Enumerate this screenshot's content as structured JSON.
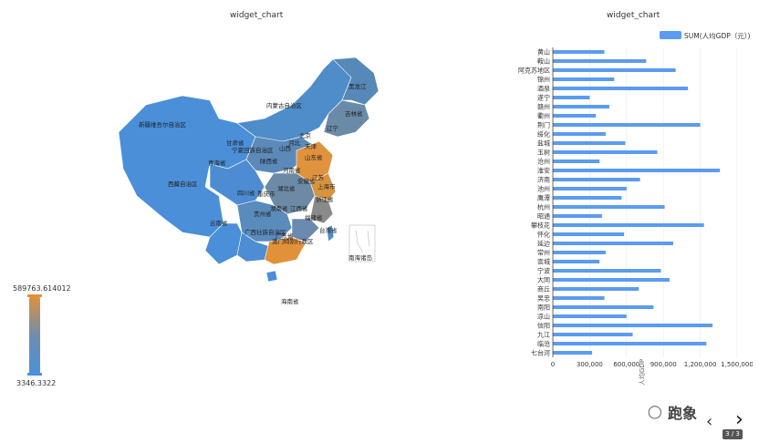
{
  "left_chart": {
    "title": "widget_chart",
    "visual_map": {
      "max": "589763.614012",
      "min": "3346.3322",
      "colors": [
        "#e0913a",
        "#6f8dae",
        "#4a90d9"
      ]
    },
    "labels": [
      "黑龙江",
      "内蒙古自治区",
      "新疆维吾尔自治区",
      "吉林省",
      "辽宁",
      "北京",
      "河北",
      "天津",
      "山西",
      "宁夏回族自治区",
      "山东省",
      "甘肃省",
      "陕西省",
      "青海省",
      "河南省",
      "江苏",
      "西藏自治区",
      "湖北省",
      "安徽省",
      "上海市",
      "四川省",
      "重庆市",
      "浙江省",
      "湖南省",
      "江西省",
      "贵州省",
      "福建省",
      "云南省",
      "广西壮族自治区",
      "广东省",
      "澳门特别行政区",
      "台湾省",
      "南海诸岛",
      "海南省"
    ]
  },
  "chart_data": {
    "type": "bar",
    "orientation": "horizontal",
    "title": "widget_chart",
    "legend": {
      "position": "top-right",
      "entries": [
        "SUM(人均GDP（元）)"
      ]
    },
    "series": [
      {
        "name": "SUM(人均GDP（元）)",
        "color": "#5b9bf0"
      }
    ],
    "xlabel": "人均GDP",
    "xlim": [
      0,
      1500000
    ],
    "xticks": [
      "0",
      "300,000",
      "600,000",
      "900,000",
      "1,200,000",
      "1,500,000"
    ],
    "categories": [
      "黄山",
      "鞍山",
      "阿克苏地区",
      "锦州",
      "酒泉",
      "遂宁",
      "赣州",
      "衢州",
      "荆门",
      "绥化",
      "盐城",
      "玉树",
      "沧州",
      "淮安",
      "济南",
      "池州",
      "鹰潭",
      "杭州",
      "昭通",
      "攀枝花",
      "怀化",
      "延边",
      "常州",
      "宣城",
      "宁波",
      "大同",
      "商丘",
      "吴忠",
      "南阳",
      "凉山",
      "信阳",
      "九江",
      "临沧",
      "七台河"
    ],
    "values": [
      420000,
      760000,
      1000000,
      500000,
      1100000,
      300000,
      460000,
      350000,
      1200000,
      430000,
      590000,
      850000,
      380000,
      1360000,
      710000,
      600000,
      560000,
      910000,
      400000,
      1230000,
      580000,
      980000,
      430000,
      380000,
      880000,
      950000,
      700000,
      420000,
      820000,
      600000,
      1300000,
      650000,
      1250000,
      320000
    ]
  },
  "watermark": {
    "text": "跑象",
    "icon": "wechat-icon"
  },
  "pager": {
    "text": "3 / 3"
  }
}
